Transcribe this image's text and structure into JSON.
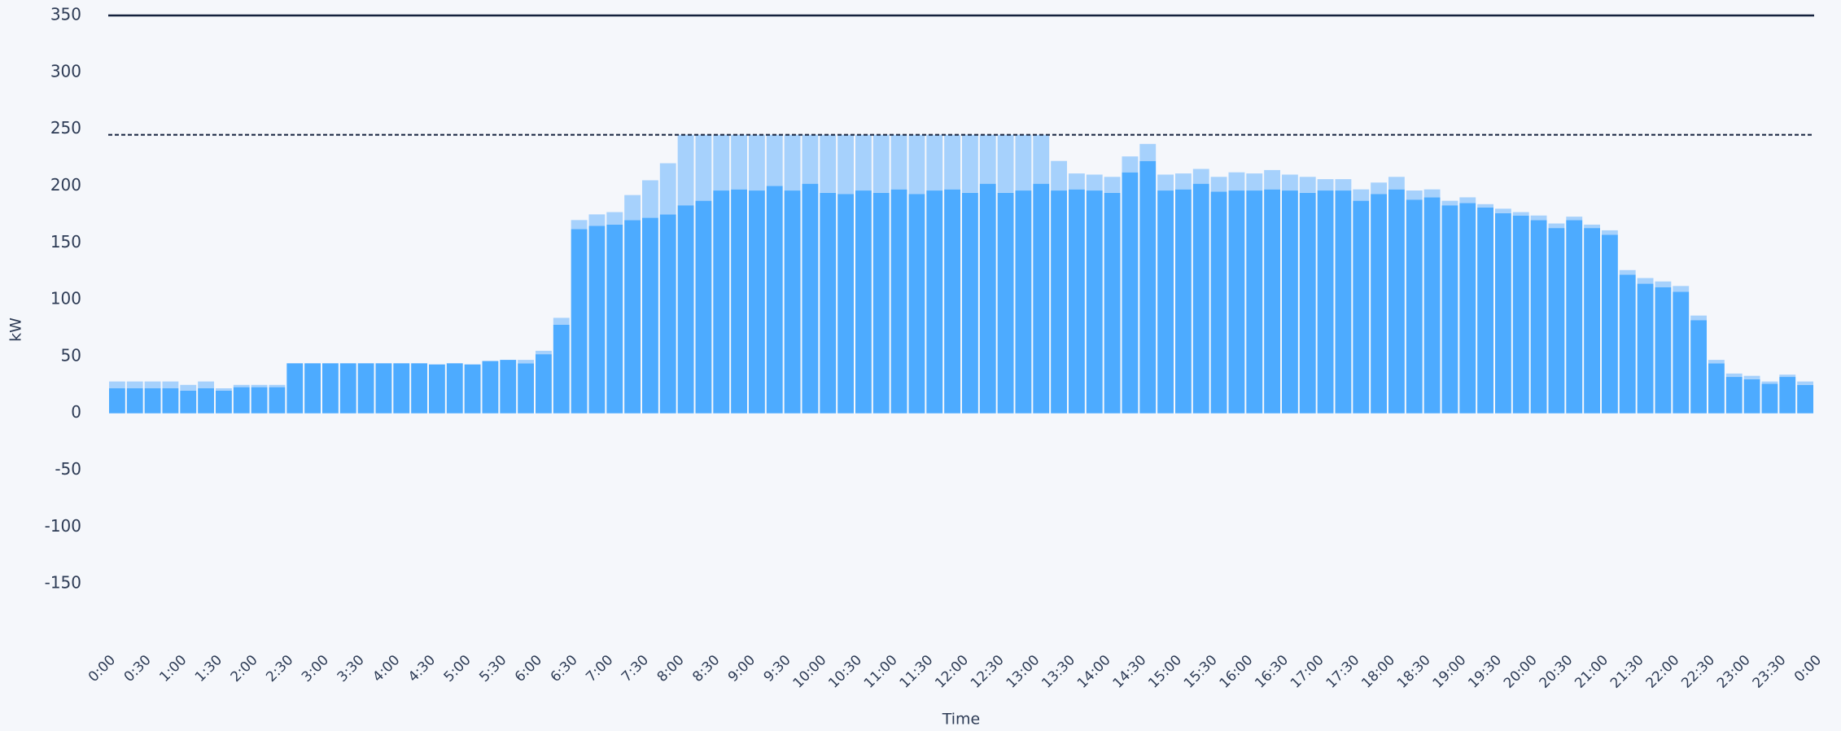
{
  "chart_data": {
    "type": "stacked_bar",
    "ylabel": "kW",
    "xlabel": "Time",
    "ylim": [
      -200,
      350
    ],
    "yticks": [
      -150,
      -100,
      -50,
      0,
      50,
      100,
      150,
      200,
      250,
      300,
      350
    ],
    "xlim": [
      0,
      24
    ],
    "xticks": [
      {
        "value": 0,
        "label": "0:00"
      },
      {
        "value": 0.5,
        "label": "0:30"
      },
      {
        "value": 1,
        "label": "1:00"
      },
      {
        "value": 1.5,
        "label": "1:30"
      },
      {
        "value": 2,
        "label": "2:00"
      },
      {
        "value": 2.5,
        "label": "2:30"
      },
      {
        "value": 3,
        "label": "3:00"
      },
      {
        "value": 3.5,
        "label": "3:30"
      },
      {
        "value": 4,
        "label": "4:00"
      },
      {
        "value": 4.5,
        "label": "4:30"
      },
      {
        "value": 5,
        "label": "5:00"
      },
      {
        "value": 5.5,
        "label": "5:30"
      },
      {
        "value": 6,
        "label": "6:00"
      },
      {
        "value": 6.5,
        "label": "6:30"
      },
      {
        "value": 7,
        "label": "7:00"
      },
      {
        "value": 7.5,
        "label": "7:30"
      },
      {
        "value": 8,
        "label": "8:00"
      },
      {
        "value": 8.5,
        "label": "8:30"
      },
      {
        "value": 9,
        "label": "9:00"
      },
      {
        "value": 9.5,
        "label": "9:30"
      },
      {
        "value": 10,
        "label": "10:00"
      },
      {
        "value": 10.5,
        "label": "10:30"
      },
      {
        "value": 11,
        "label": "11:00"
      },
      {
        "value": 11.5,
        "label": "11:30"
      },
      {
        "value": 12,
        "label": "12:00"
      },
      {
        "value": 12.5,
        "label": "12:30"
      },
      {
        "value": 13,
        "label": "13:00"
      },
      {
        "value": 13.5,
        "label": "13:30"
      },
      {
        "value": 14,
        "label": "14:00"
      },
      {
        "value": 14.5,
        "label": "14:30"
      },
      {
        "value": 15,
        "label": "15:00"
      },
      {
        "value": 15.5,
        "label": "15:30"
      },
      {
        "value": 16,
        "label": "16:00"
      },
      {
        "value": 16.5,
        "label": "16:30"
      },
      {
        "value": 17,
        "label": "17:00"
      },
      {
        "value": 17.5,
        "label": "17:30"
      },
      {
        "value": 18,
        "label": "18:00"
      },
      {
        "value": 18.5,
        "label": "18:30"
      },
      {
        "value": 19,
        "label": "19:00"
      },
      {
        "value": 19.5,
        "label": "19:30"
      },
      {
        "value": 20,
        "label": "20:00"
      },
      {
        "value": 20.5,
        "label": "20:30"
      },
      {
        "value": 21,
        "label": "21:00"
      },
      {
        "value": 21.5,
        "label": "21:30"
      },
      {
        "value": 22,
        "label": "22:00"
      },
      {
        "value": 22.5,
        "label": "22:30"
      },
      {
        "value": 23,
        "label": "23:00"
      },
      {
        "value": 23.5,
        "label": "23:30"
      },
      {
        "value": 24,
        "label": "0:00"
      }
    ],
    "bar_width": 0.25,
    "x": [
      0,
      0.25,
      0.5,
      0.75,
      1,
      1.25,
      1.5,
      1.75,
      2,
      2.25,
      2.5,
      2.75,
      3,
      3.25,
      3.5,
      3.75,
      4,
      4.25,
      4.5,
      4.75,
      5,
      5.25,
      5.5,
      5.75,
      6,
      6.25,
      6.5,
      6.75,
      7,
      7.25,
      7.5,
      7.75,
      8,
      8.25,
      8.5,
      8.75,
      9,
      9.25,
      9.5,
      9.75,
      10,
      10.25,
      10.5,
      10.75,
      11,
      11.25,
      11.5,
      11.75,
      12,
      12.25,
      12.5,
      12.75,
      13,
      13.25,
      13.5,
      13.75,
      14,
      14.25,
      14.5,
      14.75,
      15,
      15.25,
      15.5,
      15.75,
      16,
      16.25,
      16.5,
      16.75,
      17,
      17.25,
      17.5,
      17.75,
      18,
      18.25,
      18.5,
      18.75,
      19,
      19.25,
      19.5,
      19.75,
      20,
      20.25,
      20.5,
      20.75,
      21,
      21.25,
      21.5,
      21.75,
      22,
      22.25,
      22.5,
      22.75,
      23,
      23.25,
      23.5,
      23.75
    ],
    "series": [
      {
        "color": "#4dabff",
        "values": [
          22,
          22,
          22,
          22,
          20,
          22,
          20,
          23,
          23,
          23,
          44,
          44,
          44,
          44,
          44,
          44,
          44,
          44,
          43,
          44,
          43,
          46,
          47,
          44,
          52,
          78,
          162,
          165,
          166,
          170,
          172,
          175,
          183,
          187,
          196,
          197,
          196,
          200,
          196,
          202,
          194,
          193,
          196,
          194,
          197,
          193,
          196,
          197,
          194,
          202,
          194,
          196,
          202,
          196,
          197,
          196,
          194,
          212,
          222,
          196,
          197,
          202,
          195,
          196,
          196,
          197,
          196,
          194,
          196,
          196,
          187,
          193,
          197,
          188,
          190,
          183,
          185,
          181,
          176,
          174,
          170,
          163,
          170,
          163,
          157,
          122,
          114,
          111,
          107,
          82,
          44,
          32,
          30,
          26,
          32,
          25
        ]
      },
      {
        "color": "#a6d1fc",
        "values": [
          6,
          6,
          6,
          6,
          5,
          6,
          2,
          2,
          2,
          2,
          0,
          0,
          0,
          0,
          0,
          0,
          0,
          0,
          0,
          0,
          0,
          0,
          0,
          3,
          3,
          6,
          8,
          10,
          11,
          22,
          33,
          45,
          62,
          58,
          49,
          48,
          49,
          45,
          49,
          43,
          51,
          52,
          49,
          51,
          48,
          52,
          49,
          48,
          51,
          43,
          51,
          49,
          43,
          26,
          14,
          14,
          14,
          14,
          15,
          14,
          14,
          13,
          13,
          16,
          15,
          17,
          14,
          14,
          10,
          10,
          10,
          10,
          11,
          8,
          7,
          4,
          5,
          3,
          4,
          3,
          4,
          4,
          3,
          3,
          4,
          4,
          5,
          5,
          5,
          4,
          3,
          3,
          3,
          2,
          2,
          3
        ]
      }
    ],
    "reference_lines": [
      {
        "value": 350,
        "style": "solid",
        "color": "#14213d"
      },
      {
        "value": 245,
        "style": "dashed",
        "color": "#14213d"
      }
    ]
  }
}
